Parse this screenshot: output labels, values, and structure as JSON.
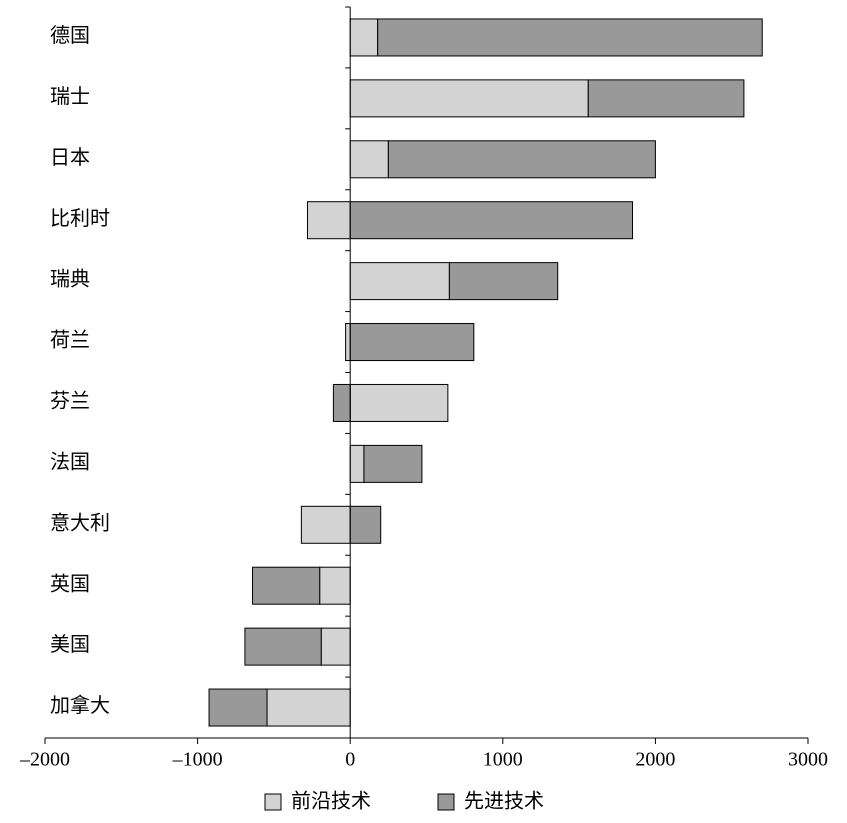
{
  "chart_data": {
    "type": "bar",
    "orientation": "horizontal",
    "stacked": true,
    "categories": [
      "德国",
      "瑞士",
      "日本",
      "比利时",
      "瑞典",
      "荷兰",
      "芬兰",
      "法国",
      "意大利",
      "英国",
      "美国",
      "加拿大"
    ],
    "series": [
      {
        "name": "前沿技术",
        "color": "#d3d3d3",
        "values": [
          180,
          1560,
          250,
          -280,
          650,
          -30,
          640,
          90,
          -320,
          -200,
          -190,
          -545
        ]
      },
      {
        "name": "先进技术",
        "color": "#999999",
        "values": [
          2520,
          1020,
          1750,
          1850,
          710,
          810,
          -110,
          380,
          200,
          -440,
          -500,
          -380
        ]
      }
    ],
    "xlim": [
      -2000,
      3000
    ],
    "xticks": [
      {
        "value": -2000,
        "label": "–2000"
      },
      {
        "value": -1000,
        "label": "–1000"
      },
      0,
      1000,
      2000,
      3000
    ]
  }
}
